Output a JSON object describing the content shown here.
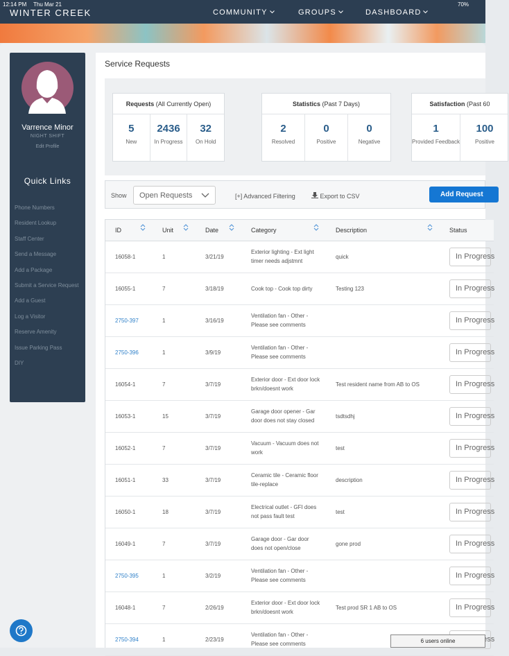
{
  "status_bar": {
    "time": "12:14 PM",
    "date": "Thu Mar 21",
    "battery": "70%"
  },
  "nav": {
    "brand": "WINTER CREEK",
    "items": [
      "COMMUNITY",
      "GROUPS",
      "DASHBOARD"
    ]
  },
  "sidebar": {
    "name": "Varrence Minor",
    "shift": "NIGHT SHIFT",
    "edit": "Edit Profile",
    "quick_links_title": "Quick Links",
    "links": [
      "Phone Numbers",
      "Resident Lookup",
      "Staff Center",
      "Send a Message",
      "Add a Package",
      "Submit a Service Request",
      "Add a Guest",
      "Log a Visitor",
      "Reserve Amenity",
      "Issue Parking Pass",
      "DIY"
    ]
  },
  "page_title": "Service Requests",
  "cards": [
    {
      "title": "Requests",
      "subtitle": "(All Currently Open)",
      "stats": [
        {
          "value": "5",
          "label": "New"
        },
        {
          "value": "2436",
          "label": "In Progress"
        },
        {
          "value": "32",
          "label": "On Hold"
        }
      ]
    },
    {
      "title": "Statistics",
      "subtitle": "(Past 7 Days)",
      "stats": [
        {
          "value": "2",
          "label": "Resolved"
        },
        {
          "value": "0",
          "label": "Positive"
        },
        {
          "value": "0",
          "label": "Negative"
        }
      ]
    },
    {
      "title": "Satisfaction",
      "subtitle": "(Past 60",
      "stats": [
        {
          "value": "1",
          "label": "Provided Feedback"
        },
        {
          "value": "100",
          "label": "Positive"
        }
      ]
    }
  ],
  "toolbar": {
    "show": "Show",
    "select": "Open Requests",
    "advanced": "[+] Advanced Filtering",
    "export": "Export to CSV",
    "add": "Add Request"
  },
  "table": {
    "headers": [
      "ID",
      "Unit",
      "Date",
      "Category",
      "Description",
      "Status"
    ],
    "rows": [
      {
        "id": "16058-1",
        "unit": "1",
        "date": "3/21/19",
        "category": "Exterior lighting - Ext light timer needs adjstmnt",
        "description": "quick",
        "status": "In Progress"
      },
      {
        "id": "16055-1",
        "unit": "7",
        "date": "3/18/19",
        "category": "Cook top - Cook top dirty",
        "description": "Testing 123",
        "status": "In Progress"
      },
      {
        "id": "2750-397",
        "link": true,
        "unit": "1",
        "date": "3/16/19",
        "category": "Ventilation fan - Other - Please see comments",
        "status": "In Progress"
      },
      {
        "id": "2750-396",
        "link": true,
        "unit": "1",
        "date": "3/9/19",
        "category": "Ventilation fan - Other - Please see comments",
        "status": "In Progress"
      },
      {
        "id": "16054-1",
        "unit": "7",
        "date": "3/7/19",
        "category": "Exterior door - Ext door lock brkn/doesnt work",
        "description": "Test resident name from AB to OS",
        "status": "In Progress"
      },
      {
        "id": "16053-1",
        "unit": "15",
        "date": "3/7/19",
        "category": "Garage door opener - Gar door does not stay closed",
        "description": "tsdtsdhj",
        "status": "In Progress"
      },
      {
        "id": "16052-1",
        "unit": "7",
        "date": "3/7/19",
        "category": "Vacuum - Vacuum does not work",
        "description": "test",
        "status": "In Progress"
      },
      {
        "id": "16051-1",
        "unit": "33",
        "date": "3/7/19",
        "category": "Ceramic tile - Ceramic floor tile-replace",
        "description": "description",
        "status": "In Progress"
      },
      {
        "id": "16050-1",
        "unit": "18",
        "date": "3/7/19",
        "category": "Electrical outlet - GFI does not pass fault test",
        "description": "test",
        "status": "In Progress"
      },
      {
        "id": "16049-1",
        "unit": "7",
        "date": "3/7/19",
        "category": "Garage door - Gar door does not open/close",
        "description": "gone prod",
        "status": "In Progress"
      },
      {
        "id": "2750-395",
        "link": true,
        "unit": "1",
        "date": "3/2/19",
        "category": "Ventilation fan - Other - Please see comments",
        "status": "In Progress"
      },
      {
        "id": "16048-1",
        "unit": "7",
        "date": "2/26/19",
        "category": "Exterior door - Ext door lock brkn/doesnt work",
        "description": "Test prod SR 1 AB to OS",
        "status": "In Progress"
      },
      {
        "id": "2750-394",
        "link": true,
        "unit": "1",
        "date": "2/23/19",
        "category": "Ventilation fan - Other - Please see comments",
        "status": "In Progress"
      }
    ]
  },
  "footer": {
    "online": "6 users online"
  }
}
